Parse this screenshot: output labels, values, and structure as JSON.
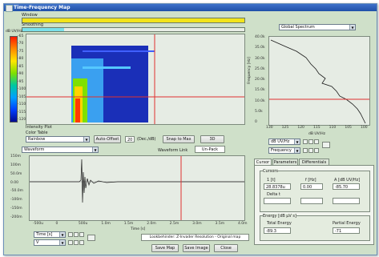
{
  "window": {
    "title": "Time-Frequency Map"
  },
  "top": {
    "window_label": "Window",
    "smoothing_label": "Smoothing",
    "spectrum_select": "Global Spectrum"
  },
  "map": {
    "colorbar_unit": "dB UV/Hz",
    "colorbar_ticks": [
      "-65",
      "-70",
      "-75",
      "-80",
      "-85",
      "-90",
      "-95",
      "-100",
      "-105",
      "-110",
      "-115",
      "-120"
    ]
  },
  "controls": {
    "intensity_plot": "Intensity Plot",
    "color_table_label": "Color Table",
    "color_table_value": "Rainbow",
    "auto_offset": "Auto-Offset",
    "range_value": "20",
    "range_unit": "(Dec./dB)",
    "snap_to_max": "Snap to Max",
    "btn_3d": "3D"
  },
  "spectrum": {
    "y_label": "Frequency [Hz]",
    "y_ticks": [
      "40.0k",
      "35.0k",
      "30.0k",
      "25.0k",
      "20.0k",
      "15.0k",
      "10.0k",
      "5.0k",
      "0"
    ],
    "x_ticks": [
      "130",
      "125",
      "120",
      "115",
      "110",
      "105",
      "100"
    ],
    "x_unit": "dB UV/Hz",
    "scale_select": "dB UV/Hz",
    "axis_select": "Frequency"
  },
  "waveform": {
    "select": "Waveform",
    "link_label": "Waveform Link",
    "link_value": "Un-Pack",
    "y_ticks": [
      "150m",
      "100m",
      "50.0m",
      "0.00",
      "-50.0m",
      "-100m",
      "-150m",
      "-200m"
    ],
    "x_ticks": [
      "-500u",
      "0",
      "500u",
      "1.0m",
      "1.5m",
      "2.0m",
      "2.5m",
      "3.0m",
      "3.5m",
      "4.0m"
    ],
    "x_label": "Time [s]",
    "time_select": "Time [s]",
    "units_select": "V"
  },
  "tabs": [
    "Cursor",
    "Parameters",
    "Differentials"
  ],
  "cursor": {
    "group_label": "Cursors",
    "col1_label": "1 [t]",
    "col2_label": "f [Hz]",
    "col3_label": "A [dB UV/Hz]",
    "val1": "28.8378u",
    "val2": "0.00",
    "val3": "-85.70",
    "delta_label": "Delta t",
    "delta_val": "",
    "energy_label": "Energy [dB µV s]",
    "total_label": "Total Energy",
    "total_val": "-89.3",
    "partial_label": "Partial Energy",
    "partial_val": "-71"
  },
  "footer": {
    "status": "Lookbehinder: Z-Invader Resolution - Original map",
    "save_map": "Save Map",
    "save_image": "Save Image",
    "close": "Close"
  }
}
